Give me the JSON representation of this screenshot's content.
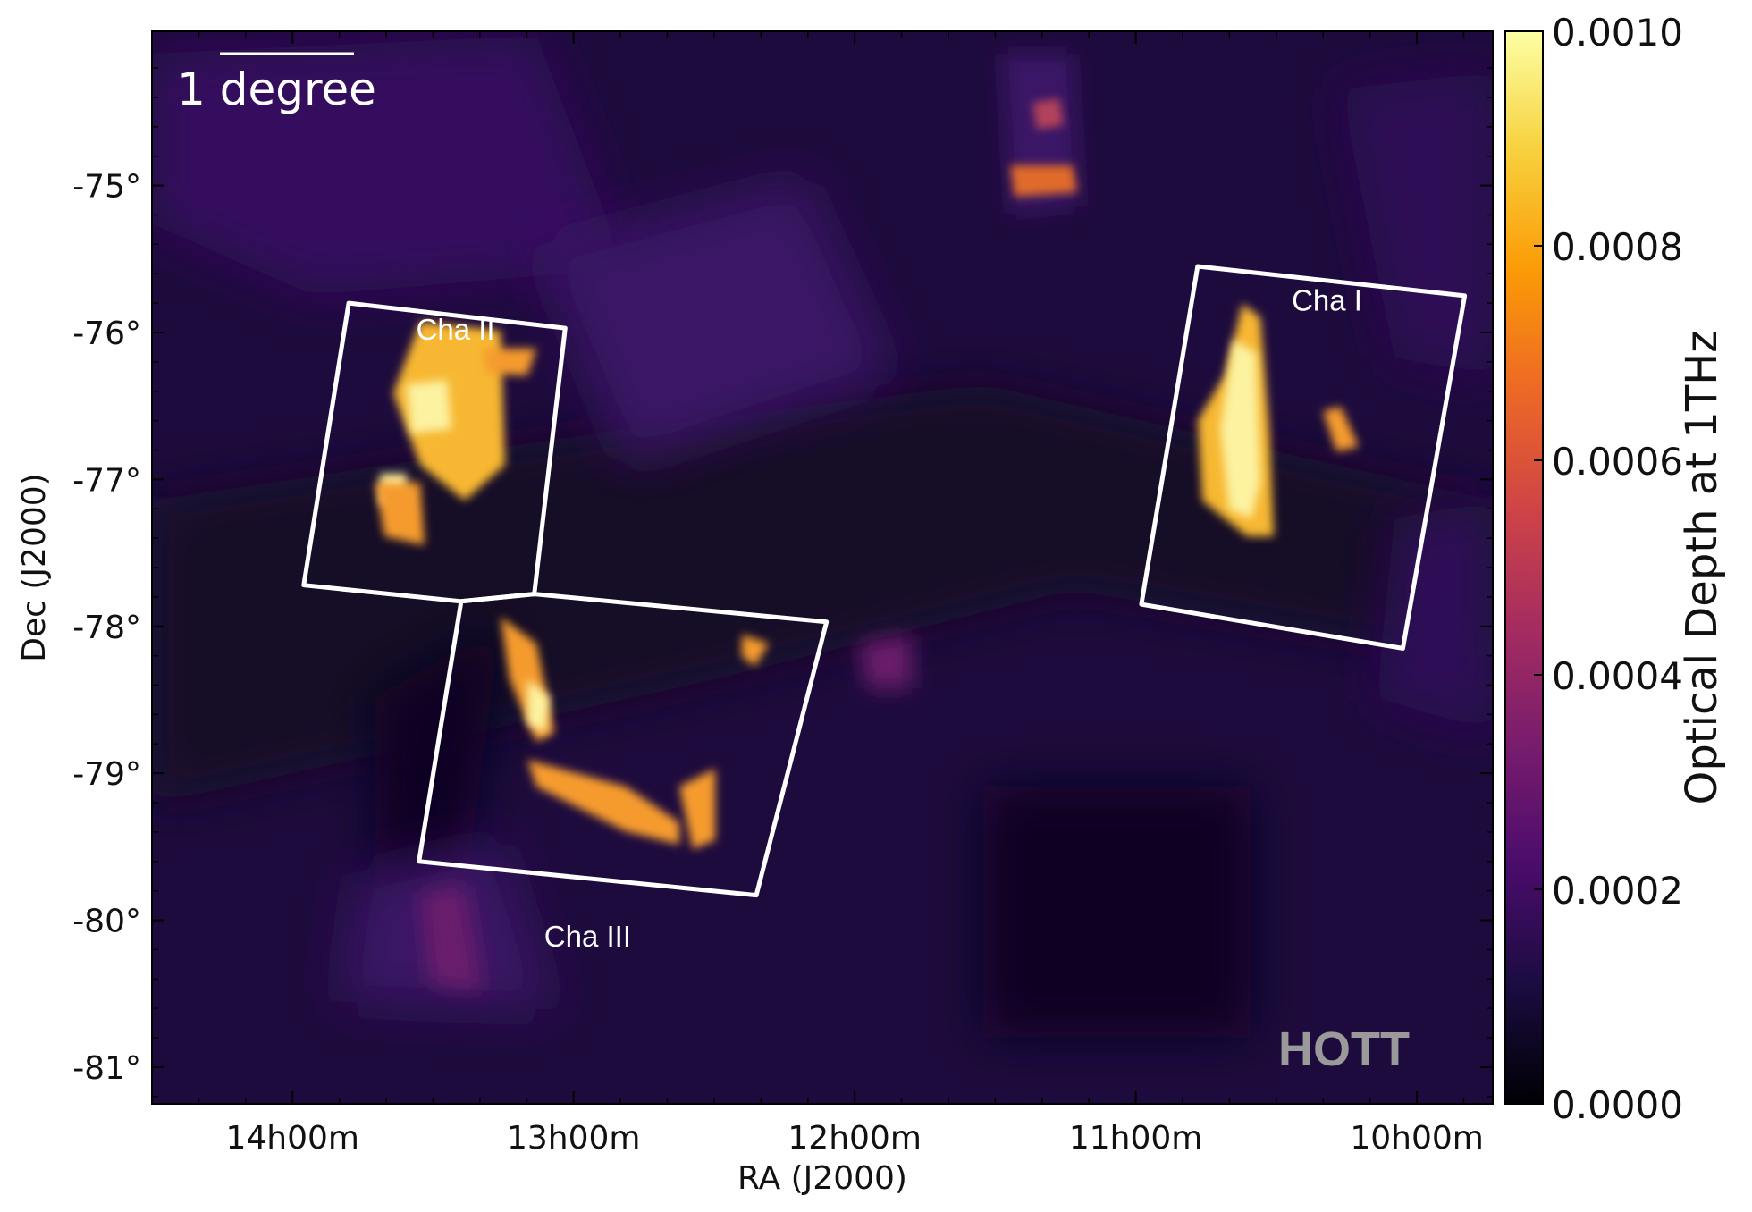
{
  "chart_data": {
    "type": "heatmap",
    "title": "",
    "xlabel": "RA (J2000)",
    "ylabel": "Dec (J2000)",
    "colorbar_label": "Optical Depth at 1THz",
    "colormap": "inferno",
    "colormap_stops": [
      "#000004",
      "#1b0c41",
      "#4a0c6b",
      "#781c6d",
      "#a52c60",
      "#cf4446",
      "#ed6925",
      "#fb9b06",
      "#f7d13d",
      "#fcffa4"
    ],
    "colorbar_range": [
      0.0,
      0.001
    ],
    "colorbar_ticks": [
      {
        "value": 0.0,
        "label": "0.0000"
      },
      {
        "value": 0.0002,
        "label": "0.0002"
      },
      {
        "value": 0.0004,
        "label": "0.0004"
      },
      {
        "value": 0.0006,
        "label": "0.0006"
      },
      {
        "value": 0.0008,
        "label": "0.0008"
      },
      {
        "value": 0.001,
        "label": "0.0010"
      }
    ],
    "xlim_hours": [
      14.5,
      9.73
    ],
    "ylim_deg": [
      -81.25,
      -73.95
    ],
    "x_ticks": [
      {
        "value": 14.0,
        "label": "14h00m"
      },
      {
        "value": 13.0,
        "label": "13h00m"
      },
      {
        "value": 12.0,
        "label": "12h00m"
      },
      {
        "value": 11.0,
        "label": "11h00m"
      },
      {
        "value": 10.0,
        "label": "10h00m"
      }
    ],
    "y_ticks": [
      {
        "value": -75,
        "label": "-75°"
      },
      {
        "value": -76,
        "label": "-76°"
      },
      {
        "value": -77,
        "label": "-77°"
      },
      {
        "value": -78,
        "label": "-78°"
      },
      {
        "value": -79,
        "label": "-79°"
      },
      {
        "value": -80,
        "label": "-80°"
      },
      {
        "value": -81,
        "label": "-81°"
      }
    ],
    "regions": [
      {
        "name": "Cha I",
        "label_ra": 10.32,
        "label_dec": -75.85,
        "corners": [
          [
            10.78,
            -75.55
          ],
          [
            9.83,
            -75.75
          ],
          [
            10.05,
            -78.15
          ],
          [
            10.98,
            -77.85
          ]
        ]
      },
      {
        "name": "Cha II",
        "label_ra": 13.42,
        "label_dec": -76.05,
        "corners": [
          [
            13.8,
            -75.8
          ],
          [
            13.03,
            -75.97
          ],
          [
            13.14,
            -77.78
          ],
          [
            13.4,
            -77.83
          ],
          [
            13.96,
            -77.72
          ]
        ]
      },
      {
        "name": "Cha III",
        "label_ra": 12.95,
        "label_dec": -80.18,
        "corners": [
          [
            13.4,
            -77.83
          ],
          [
            13.14,
            -77.78
          ],
          [
            12.1,
            -77.97
          ],
          [
            12.35,
            -79.83
          ],
          [
            13.55,
            -79.6
          ]
        ]
      }
    ],
    "scale_bar": {
      "label": "1 degree"
    },
    "watermark": "HOTT"
  }
}
